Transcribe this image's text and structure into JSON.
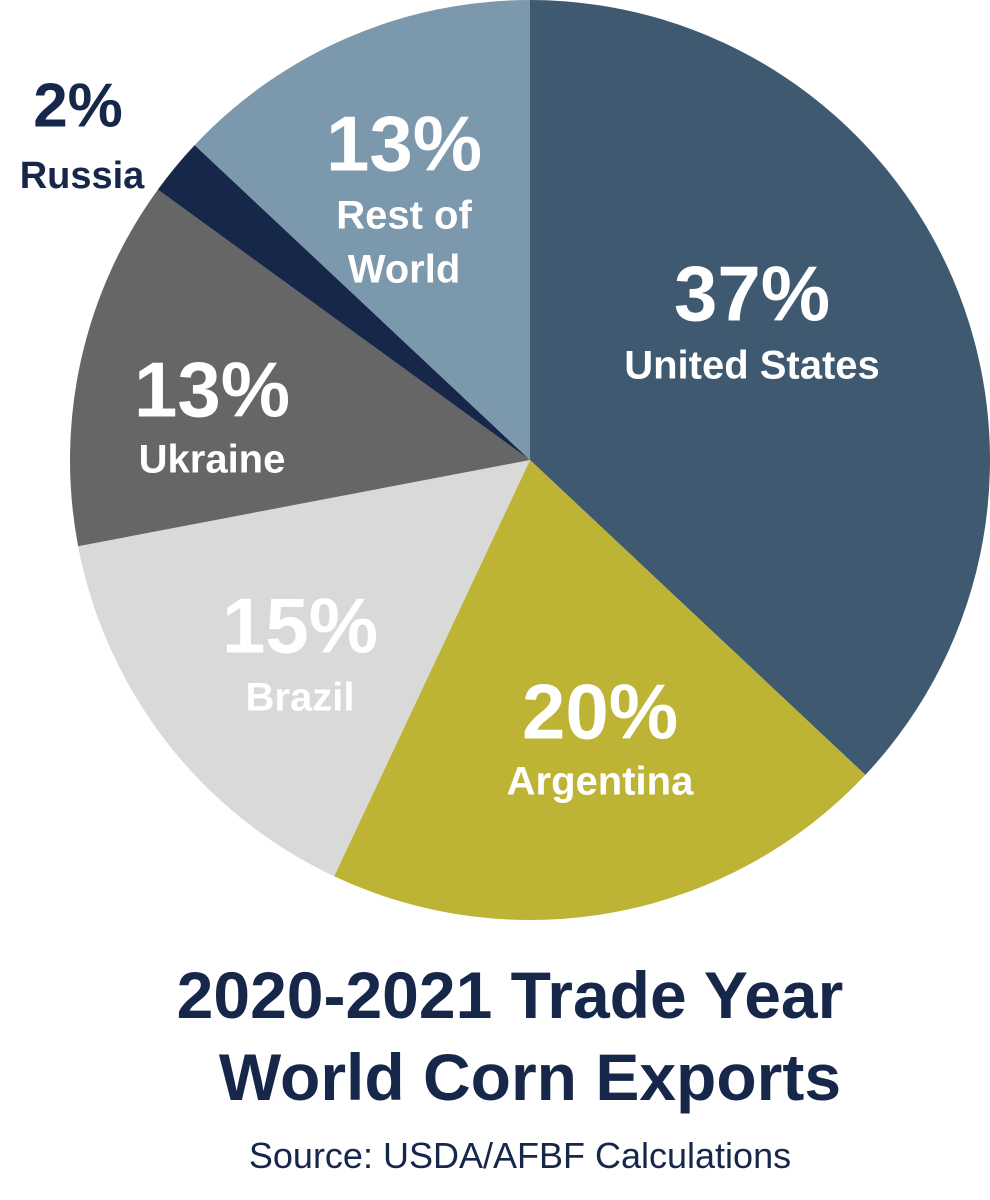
{
  "chart_data": {
    "type": "pie",
    "title": "2020-2021 Trade Year",
    "subtitle": "World Corn Exports",
    "source": "Source: USDA/AFBF Calculations",
    "slices": [
      {
        "label": "United States",
        "value": 37,
        "value_label": "37%",
        "color": "#3f5a70",
        "text_color": "#ffffff"
      },
      {
        "label": "Argentina",
        "value": 20,
        "value_label": "20%",
        "color": "#bdb335",
        "text_color": "#ffffff"
      },
      {
        "label": "Brazil",
        "value": 15,
        "value_label": "15%",
        "color": "#d9d9d8",
        "text_color": "#ffffff"
      },
      {
        "label": "Ukraine",
        "value": 13,
        "value_label": "13%",
        "color": "#666666",
        "text_color": "#ffffff"
      },
      {
        "label": "Russia",
        "value": 2,
        "value_label": "2%",
        "color": "#16274a",
        "text_color": "#16274a"
      },
      {
        "label": "Rest of World",
        "value": 13,
        "value_label": "13%",
        "color": "#7b98ad",
        "text_color": "#ffffff"
      }
    ]
  }
}
